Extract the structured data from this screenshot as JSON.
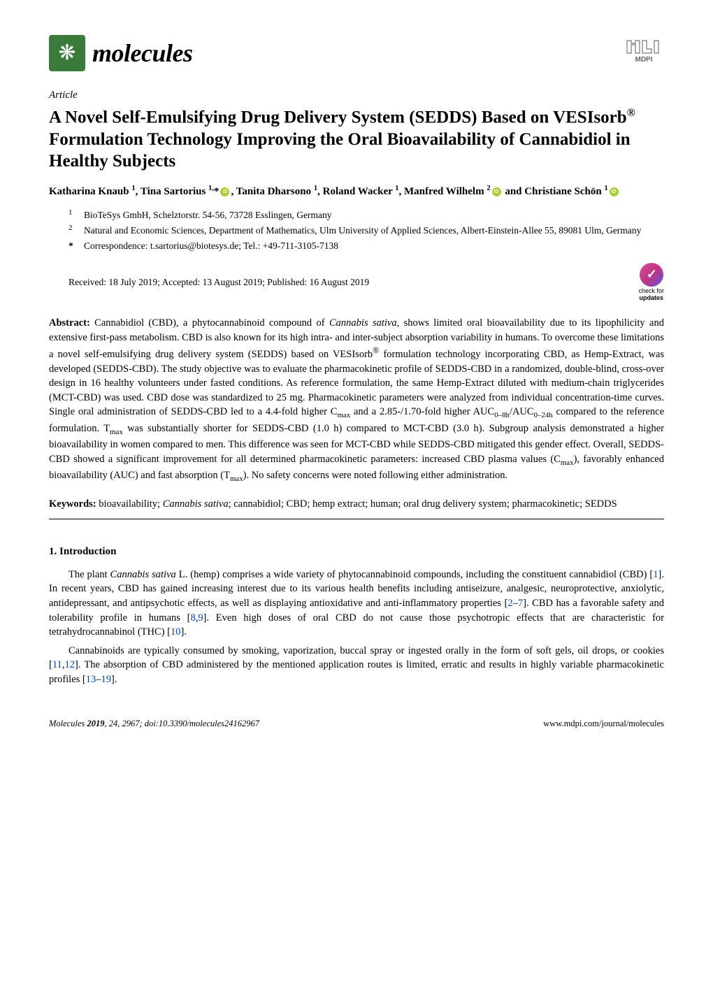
{
  "journal": {
    "name": "molecules",
    "logo_glyph": "❋",
    "logo_bg": "#3a7a3a"
  },
  "publisher": "MDPI",
  "article_type": "Article",
  "title_html": "A Novel Self-Emulsifying Drug Delivery System (SEDDS) Based on VESIsorb<sup>®</sup> Formulation Technology Improving the Oral Bioavailability of Cannabidiol in Healthy Subjects",
  "authors_html": "Katharina Knaub <sup>1</sup>, Tina Sartorius <sup>1,</sup>*<span class=\"orcid\" data-name=\"orcid-icon\" data-interactable=\"false\"></span>, Tanita Dharsono <sup>1</sup>, Roland Wacker <sup>1</sup>, Manfred Wilhelm <sup>2</sup><span class=\"orcid\" data-name=\"orcid-icon\" data-interactable=\"false\"></span> and Christiane Schön <sup>1</sup><span class=\"orcid\" data-name=\"orcid-icon\" data-interactable=\"false\"></span>",
  "affiliations": [
    {
      "num": "1",
      "text": "BioTeSys GmbH, Schelztorstr. 54-56, 73728 Esslingen, Germany"
    },
    {
      "num": "2",
      "text": "Natural and Economic Sciences, Department of Mathematics, Ulm University of Applied Sciences, Albert-Einstein-Allee 55, 89081 Ulm, Germany"
    }
  ],
  "correspondence": {
    "marker": "*",
    "text": "Correspondence: t.sartorius@biotesys.de; Tel.: +49-711-3105-7138"
  },
  "dates": "Received: 18 July 2019; Accepted: 13 August 2019; Published: 16 August 2019",
  "check_updates": {
    "line1": "check for",
    "line2": "updates"
  },
  "abstract_html": "<b>Abstract:</b> Cannabidiol (CBD), a phytocannabinoid compound of <i>Cannabis sativa</i>, shows limited oral bioavailability due to its lipophilicity and extensive first-pass metabolism. CBD is also known for its high intra- and inter-subject absorption variability in humans. To overcome these limitations a novel self-emulsifying drug delivery system (SEDDS) based on VESIsorb<sup>®</sup> formulation technology incorporating CBD, as Hemp-Extract, was developed (SEDDS-CBD). The study objective was to evaluate the pharmacokinetic profile of SEDDS-CBD in a randomized, double-blind, cross-over design in 16 healthy volunteers under fasted conditions. As reference formulation, the same Hemp-Extract diluted with medium-chain triglycerides (MCT-CBD) was used. CBD dose was standardized to 25 mg. Pharmacokinetic parameters were analyzed from individual concentration-time curves. Single oral administration of SEDDS-CBD led to a 4.4-fold higher C<span class=\"sub\">max</span> and a 2.85-/1.70-fold higher AUC<span class=\"sub\">0–8h</span>/AUC<span class=\"sub\">0–24h</span> compared to the reference formulation. T<span class=\"sub\">max</span> was substantially shorter for SEDDS-CBD (1.0 h) compared to MCT-CBD (3.0 h). Subgroup analysis demonstrated a higher bioavailability in women compared to men. This difference was seen for MCT-CBD while SEDDS-CBD mitigated this gender effect. Overall, SEDDS-CBD showed a significant improvement for all determined pharmacokinetic parameters: increased CBD plasma values (C<span class=\"sub\">max</span>), favorably enhanced bioavailability (AUC) and fast absorption (T<span class=\"sub\">max</span>). No safety concerns were noted following either administration.",
  "keywords_html": "<b>Keywords:</b> bioavailability; <i>Cannabis sativa</i>; cannabidiol; CBD; hemp extract; human; oral drug delivery system; pharmacokinetic; SEDDS",
  "section_heading": "1. Introduction",
  "paragraphs_html": [
    "The plant <i>Cannabis sativa</i> L. (hemp) comprises a wide variety of phytocannabinoid compounds, including the constituent cannabidiol (CBD) [<span class=\"ref\">1</span>]. In recent years, CBD has gained increasing interest due to its various health benefits including antiseizure, analgesic, neuroprotective, anxiolytic, antidepressant, and antipsychotic effects, as well as displaying antioxidative and anti-inflammatory properties [<span class=\"ref\">2</span>–<span class=\"ref\">7</span>]. CBD has a favorable safety and tolerability profile in humans [<span class=\"ref\">8</span>,<span class=\"ref\">9</span>]. Even high doses of oral CBD do not cause those psychotropic effects that are characteristic for tetrahydrocannabinol (THC) [<span class=\"ref\">10</span>].",
    "Cannabinoids are typically consumed by smoking, vaporization, buccal spray or ingested orally in the form of soft gels, oil drops, or cookies [<span class=\"ref\">11</span>,<span class=\"ref\">12</span>]. The absorption of CBD administered by the mentioned application routes is limited, erratic and results in highly variable pharmacokinetic profiles [<span class=\"ref\">13</span>–<span class=\"ref\">19</span>]."
  ],
  "footer": {
    "left_html": "<i>Molecules</i> <b>2019</b>, <i>24</i>, 2967; doi:10.3390/molecules24162967",
    "right": "www.mdpi.com/journal/molecules"
  }
}
